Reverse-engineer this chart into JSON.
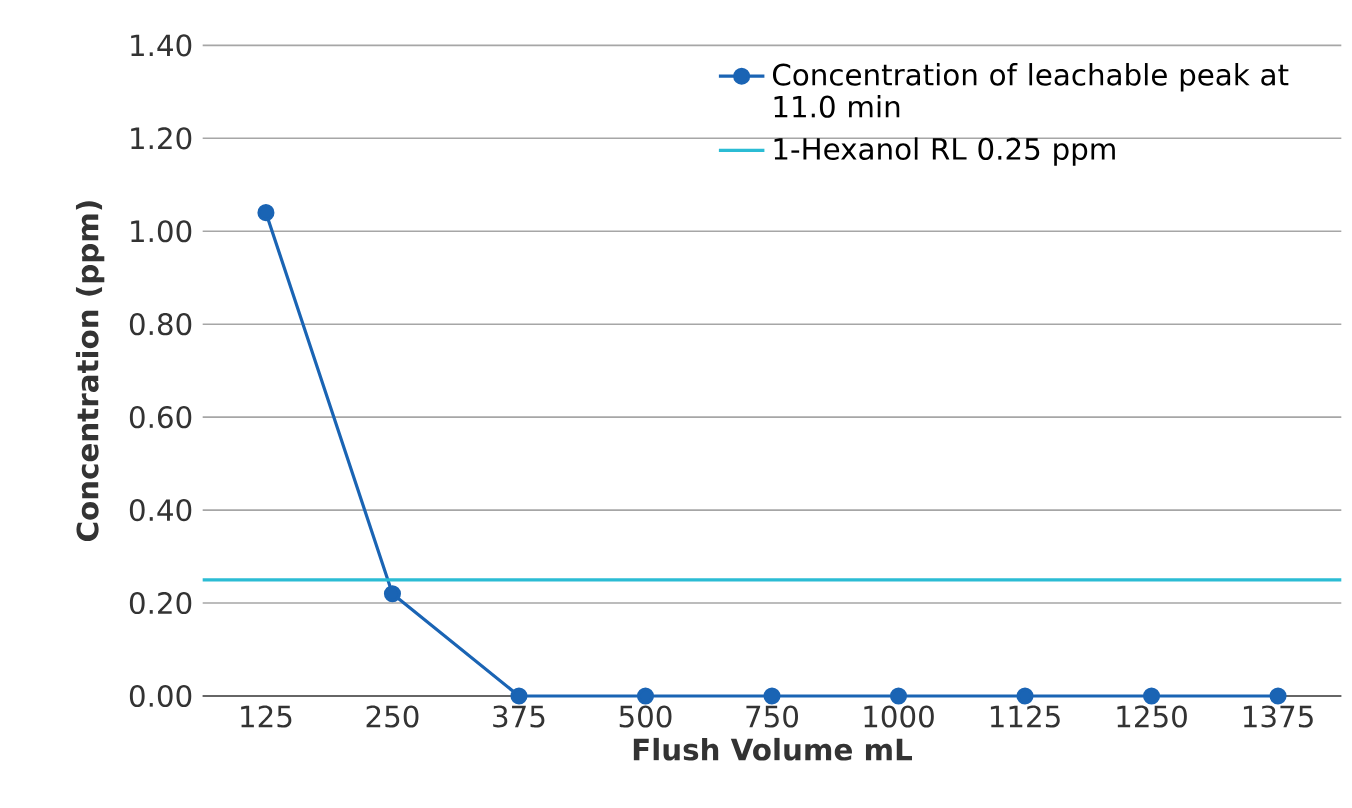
{
  "chart_data": {
    "type": "line",
    "xlabel": "Flush Volume mL",
    "ylabel": "Concentration (ppm)",
    "categories": [
      "125",
      "250",
      "375",
      "500",
      "750",
      "1000",
      "1125",
      "1250",
      "1375"
    ],
    "series": [
      {
        "name": "Concentration of leachable peak at 11.0 min",
        "color": "#1a64b4",
        "values": [
          1.04,
          0.22,
          0,
          0,
          0,
          0,
          0,
          0,
          0
        ]
      }
    ],
    "ref_lines": [
      {
        "axis": "y",
        "value": 0.25,
        "label": "1-Hexanol RL 0.25 ppm",
        "color": "#2bbcd4"
      }
    ],
    "ylim": [
      0,
      1.4
    ],
    "yticks": [
      {
        "value": 0,
        "label": "0.00"
      },
      {
        "value": 0.2,
        "label": "0.20"
      },
      {
        "value": 0.4,
        "label": "0.40"
      },
      {
        "value": 0.6,
        "label": "0.60"
      },
      {
        "value": 0.8,
        "label": "0.80"
      },
      {
        "value": 1.0,
        "label": "1.00"
      },
      {
        "value": 1.2,
        "label": "1.20"
      },
      {
        "value": 1.4,
        "label": "1.40"
      }
    ],
    "grid": "y",
    "legend": "top right",
    "marker": "circle",
    "line_style": "solid"
  }
}
